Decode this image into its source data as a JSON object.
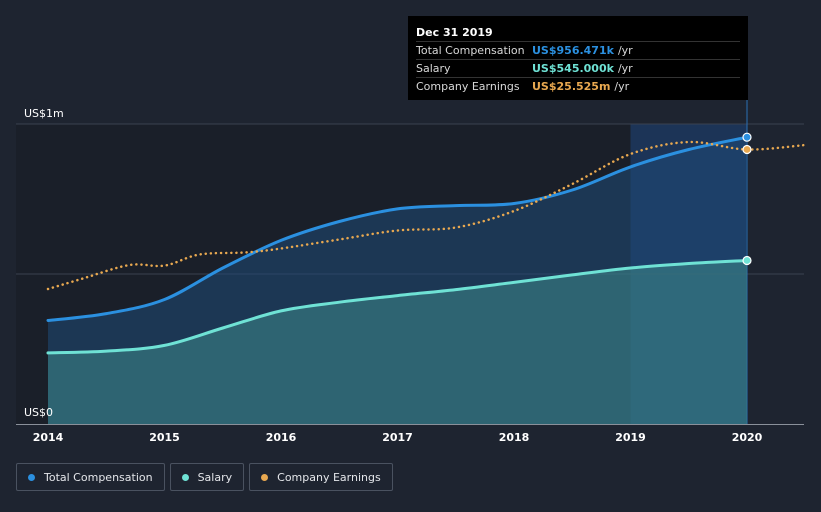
{
  "chart_data": {
    "type": "area",
    "x_ticks": [
      "2014",
      "2015",
      "2016",
      "2017",
      "2018",
      "2019",
      "2020"
    ],
    "y_labels": [
      "US$1m",
      "US$0"
    ],
    "ylim": [
      0,
      1000
    ],
    "units": "US$ thousands",
    "forecast_region_start": 2019.0,
    "series": [
      {
        "name": "Total Compensation",
        "color": "#2b90e0",
        "x": [
          2014.0,
          2014.5,
          2015.0,
          2015.5,
          2016.0,
          2016.5,
          2017.0,
          2017.5,
          2018.0,
          2018.5,
          2019.0,
          2019.5,
          2020.0
        ],
        "values": [
          345,
          368,
          415,
          520,
          612,
          675,
          717,
          728,
          735,
          780,
          857,
          915,
          956
        ]
      },
      {
        "name": "Salary",
        "color": "#6fe2d5",
        "x": [
          2014.0,
          2014.5,
          2015.0,
          2015.5,
          2016.0,
          2016.5,
          2017.0,
          2017.5,
          2018.0,
          2018.5,
          2019.0,
          2019.5,
          2020.0
        ],
        "values": [
          237,
          243,
          262,
          320,
          377,
          406,
          428,
          448,
          472,
          497,
          520,
          535,
          545
        ]
      },
      {
        "name": "Company Earnings",
        "style": "dotted",
        "color": "#e8a850",
        "x": [
          2014.0,
          2014.3,
          2014.7,
          2015.0,
          2015.3,
          2015.7,
          2016.0,
          2016.5,
          2017.0,
          2017.5,
          2018.0,
          2018.5,
          2019.0,
          2019.5,
          2020.0,
          2020.5
        ],
        "values": [
          450,
          485,
          530,
          528,
          565,
          572,
          585,
          615,
          645,
          655,
          710,
          800,
          900,
          940,
          915,
          930
        ]
      }
    ],
    "tooltip": {
      "date": "Dec 31 2019",
      "rows": [
        {
          "name": "Total Compensation",
          "value": "US$956.471k",
          "unit": "/yr",
          "color": "#2b90e0"
        },
        {
          "name": "Salary",
          "value": "US$545.000k",
          "unit": "/yr",
          "color": "#6fe2d5"
        },
        {
          "name": "Company Earnings",
          "value": "US$25.525m",
          "unit": "/yr",
          "color": "#e8a850"
        }
      ]
    },
    "legend": [
      {
        "label": "Total Compensation",
        "color": "#2b90e0"
      },
      {
        "label": "Salary",
        "color": "#6fe2d5"
      },
      {
        "label": "Company Earnings",
        "color": "#e8a850"
      }
    ]
  }
}
